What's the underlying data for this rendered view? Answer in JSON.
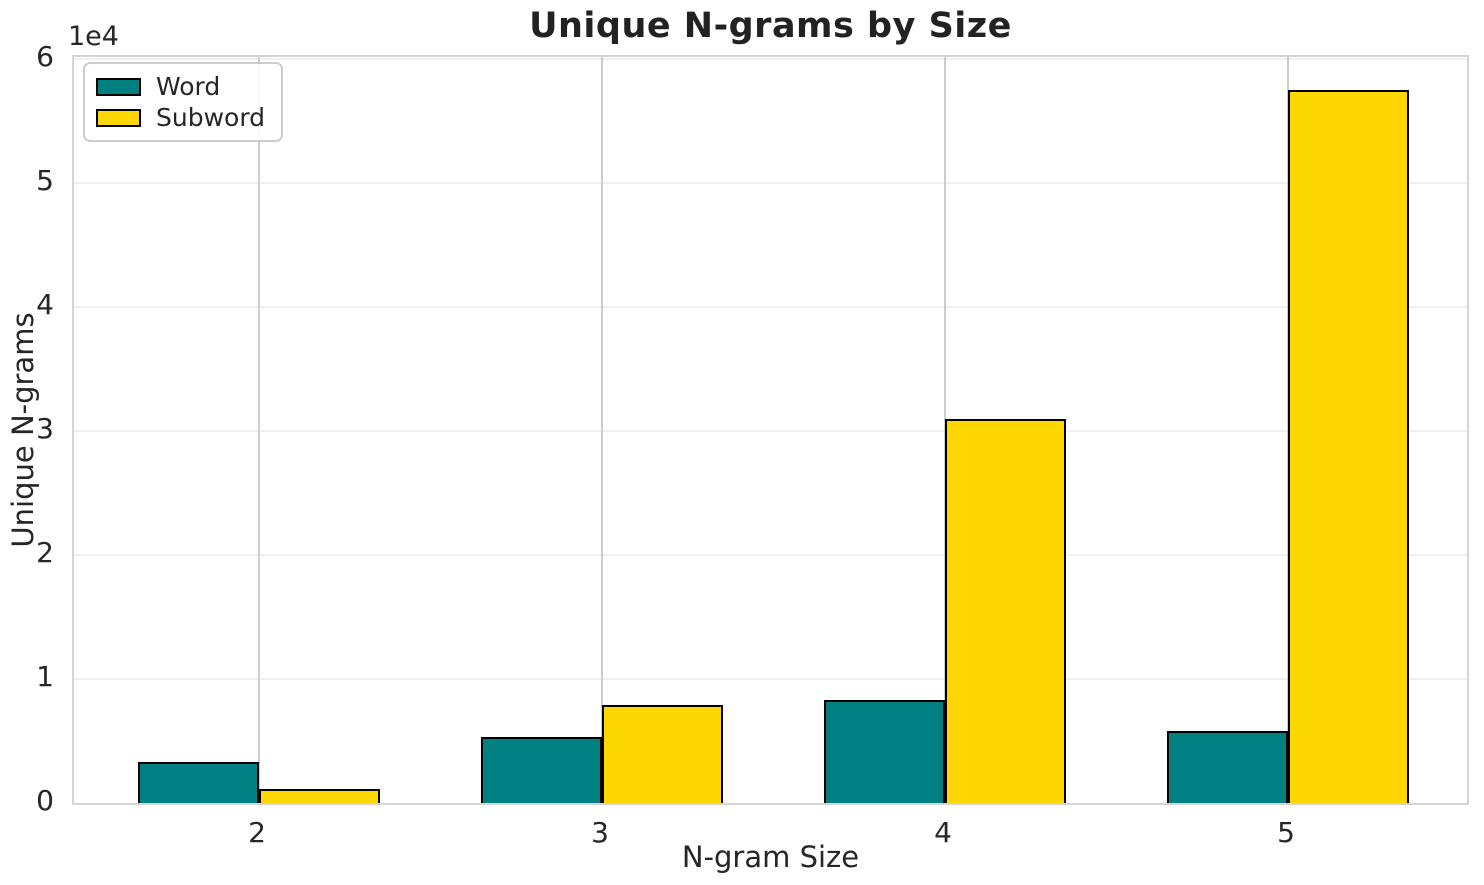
{
  "chart_data": {
    "type": "bar",
    "title": "Unique N-grams by Size",
    "xlabel": "N-gram Size",
    "ylabel": "Unique N-grams",
    "offset_text": "1e4",
    "categories": [
      "2",
      "3",
      "4",
      "5"
    ],
    "series": [
      {
        "name": "Word",
        "color": "#008080",
        "values": [
          3300,
          5300,
          8300,
          5800
        ]
      },
      {
        "name": "Subword",
        "color": "#FFD700",
        "values": [
          1150,
          7900,
          31000,
          57500
        ]
      }
    ],
    "ylim": [
      0,
      60200
    ],
    "yticks": [
      0,
      10000,
      20000,
      30000,
      40000,
      50000,
      60000
    ],
    "ytick_labels": [
      "0",
      "1",
      "2",
      "3",
      "4",
      "5",
      "6"
    ],
    "legend_position": "upper left",
    "grid": true,
    "bar_edge_color": "#000000",
    "colors": {
      "word_bar": "#008080",
      "subword_bar": "#FFD700",
      "grid_horizontal": "#f0f0f0",
      "grid_vertical": "#cccccc",
      "spine": "#d5d5d5",
      "text": "#262626"
    }
  }
}
